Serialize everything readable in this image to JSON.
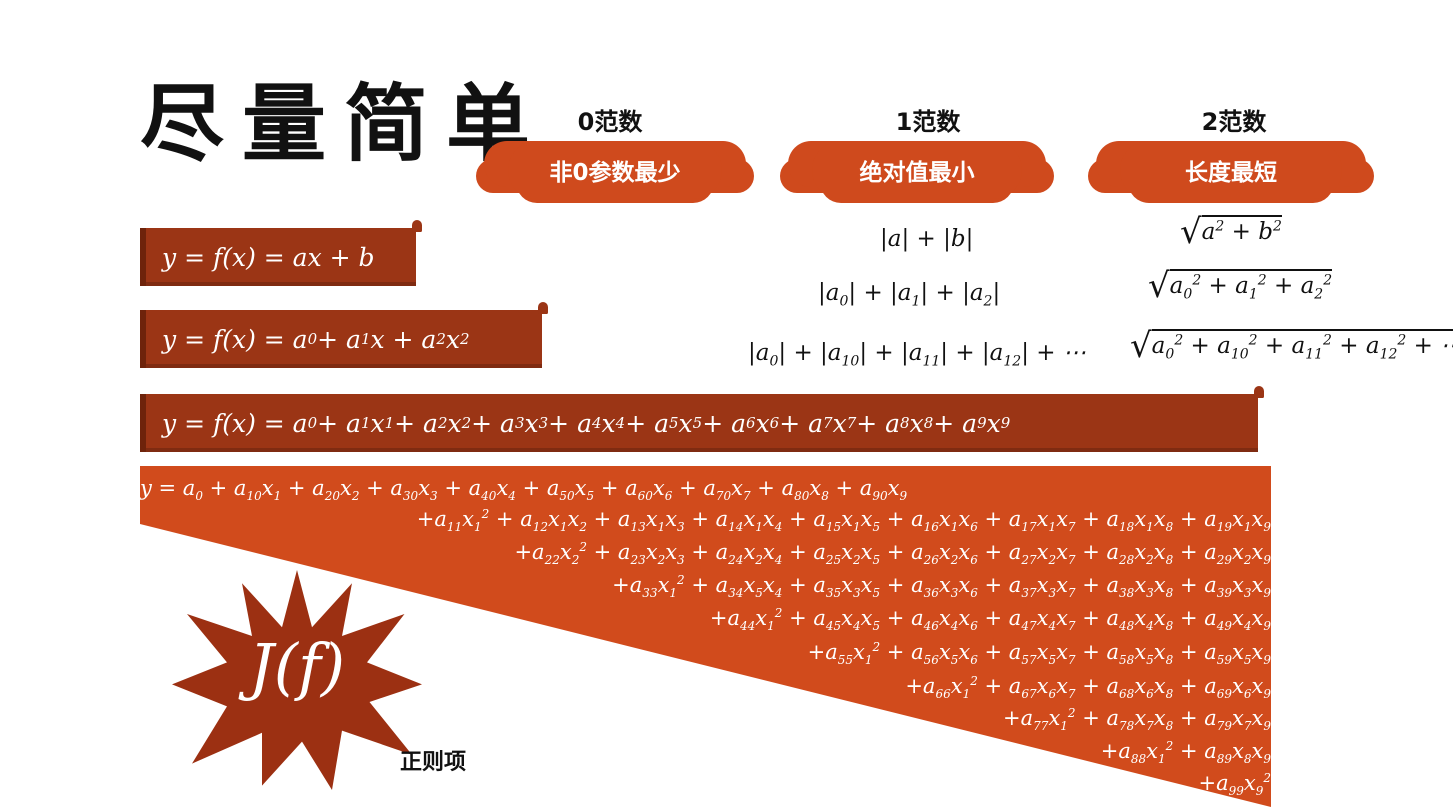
{
  "title": "尽量简单",
  "norms": [
    {
      "head": "0范数",
      "badge": "非0参数最少"
    },
    {
      "head": "1范数",
      "badge": "绝对值最小"
    },
    {
      "head": "2范数",
      "badge": "长度最短"
    }
  ],
  "colors": {
    "banner": "#9b3515",
    "accent": "#d14b1c",
    "burst": "#9c3012"
  },
  "burst_label": "J(f)",
  "regularization_label": "正则项"
}
